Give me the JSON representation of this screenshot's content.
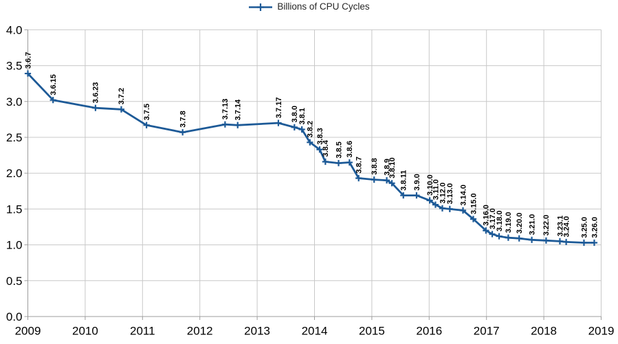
{
  "chart_data": {
    "type": "line",
    "title": "",
    "xlabel": "",
    "ylabel": "",
    "xlim": [
      2009,
      2019
    ],
    "ylim": [
      0.0,
      4.0
    ],
    "x_ticks": [
      2009,
      2010,
      2011,
      2012,
      2013,
      2014,
      2015,
      2016,
      2017,
      2018,
      2019
    ],
    "y_ticks": [
      0.0,
      0.5,
      1.0,
      1.5,
      2.0,
      2.5,
      3.0,
      3.5,
      4.0
    ],
    "grid": true,
    "legend_position": "top-center",
    "data_label_rotation": 90,
    "colors": {
      "series": "#1d5a97",
      "grid": "#c8c8c8",
      "axis": "#9c9c9c",
      "text": "#000000",
      "background": "#ffffff"
    },
    "series": [
      {
        "name": "Billions of CPU Cycles",
        "color": "#1d5a97",
        "marker": "plus",
        "points": [
          {
            "label": "3.6.7",
            "x": 2009.0,
            "y": 3.39
          },
          {
            "label": "3.6.15",
            "x": 2009.44,
            "y": 3.02
          },
          {
            "label": "3.6.23",
            "x": 2010.18,
            "y": 2.91
          },
          {
            "label": "3.7.2",
            "x": 2010.63,
            "y": 2.89
          },
          {
            "label": "3.7.5",
            "x": 2011.07,
            "y": 2.67
          },
          {
            "label": "3.7.8",
            "x": 2011.7,
            "y": 2.57
          },
          {
            "label": "3.7.13",
            "x": 2012.44,
            "y": 2.68
          },
          {
            "label": "3.7.14",
            "x": 2012.66,
            "y": 2.67
          },
          {
            "label": "3.7.17",
            "x": 2013.37,
            "y": 2.7
          },
          {
            "label": "3.8.0",
            "x": 2013.65,
            "y": 2.64
          },
          {
            "label": "3.8.1",
            "x": 2013.78,
            "y": 2.61
          },
          {
            "label": "3.8.2",
            "x": 2013.92,
            "y": 2.43
          },
          {
            "label": "3.8.3",
            "x": 2014.09,
            "y": 2.33
          },
          {
            "label": "3.8.4",
            "x": 2014.19,
            "y": 2.16
          },
          {
            "label": "3.8.5",
            "x": 2014.42,
            "y": 2.14
          },
          {
            "label": "3.8.6",
            "x": 2014.61,
            "y": 2.15
          },
          {
            "label": "3.8.7",
            "x": 2014.77,
            "y": 1.93
          },
          {
            "label": "3.8.8",
            "x": 2015.04,
            "y": 1.91
          },
          {
            "label": "3.8.9",
            "x": 2015.26,
            "y": 1.9
          },
          {
            "label": "3.8.10",
            "x": 2015.35,
            "y": 1.86
          },
          {
            "label": "3.8.11",
            "x": 2015.55,
            "y": 1.69
          },
          {
            "label": "3.9.0",
            "x": 2015.78,
            "y": 1.69
          },
          {
            "label": "3.10.0",
            "x": 2016.01,
            "y": 1.62
          },
          {
            "label": "3.11.0",
            "x": 2016.11,
            "y": 1.56
          },
          {
            "label": "3.12.0",
            "x": 2016.23,
            "y": 1.51
          },
          {
            "label": "3.13.0",
            "x": 2016.36,
            "y": 1.5
          },
          {
            "label": "3.14.0",
            "x": 2016.59,
            "y": 1.48
          },
          {
            "label": "3.15.0",
            "x": 2016.77,
            "y": 1.36
          },
          {
            "label": "3.16.0",
            "x": 2016.99,
            "y": 1.2
          },
          {
            "label": "3.17.0",
            "x": 2017.1,
            "y": 1.15
          },
          {
            "label": "3.18.0",
            "x": 2017.22,
            "y": 1.12
          },
          {
            "label": "3.19.0",
            "x": 2017.38,
            "y": 1.1
          },
          {
            "label": "3.20.0",
            "x": 2017.57,
            "y": 1.09
          },
          {
            "label": "3.21.0",
            "x": 2017.79,
            "y": 1.07
          },
          {
            "label": "3.22.0",
            "x": 2018.04,
            "y": 1.06
          },
          {
            "label": "3.23.1",
            "x": 2018.28,
            "y": 1.05
          },
          {
            "label": "3.24.0",
            "x": 2018.39,
            "y": 1.04
          },
          {
            "label": "3.25.0",
            "x": 2018.7,
            "y": 1.03
          },
          {
            "label": "3.26.0",
            "x": 2018.88,
            "y": 1.03
          }
        ]
      }
    ]
  }
}
